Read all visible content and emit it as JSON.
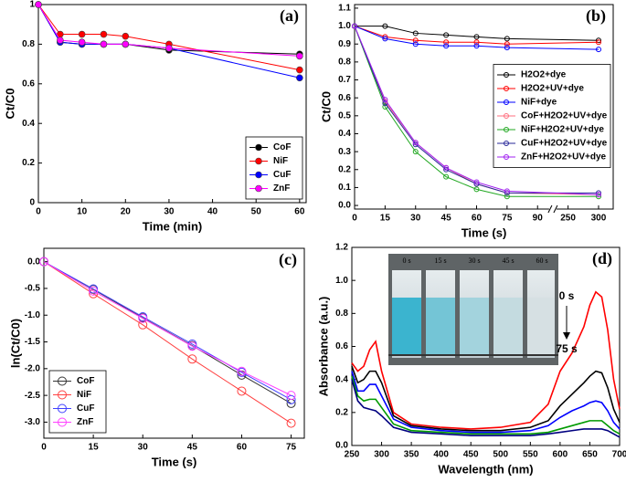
{
  "chart_data": [
    {
      "type": "line",
      "panel_label": "(a)",
      "xlabel": "Time (min)",
      "ylabel": "Ct/C0",
      "x": [
        0,
        5,
        10,
        15,
        20,
        30,
        60
      ],
      "xlim": [
        0,
        61.5
      ],
      "ylim": [
        0,
        1
      ],
      "xticks": [
        0,
        10,
        20,
        30,
        40,
        50,
        60
      ],
      "yticks": [
        0,
        0.2,
        0.4,
        0.6,
        0.8,
        1
      ],
      "markers": "filled",
      "legend": "lower right",
      "series": [
        {
          "name": "CoF",
          "color": "#000000",
          "values": [
            1,
            0.81,
            0.8,
            0.8,
            0.8,
            0.77,
            0.75
          ]
        },
        {
          "name": "NiF",
          "color": "#ff0000",
          "values": [
            1,
            0.85,
            0.85,
            0.85,
            0.84,
            0.8,
            0.67
          ]
        },
        {
          "name": "CuF",
          "color": "#0000ff",
          "values": [
            1,
            0.81,
            0.8,
            0.8,
            0.8,
            0.78,
            0.63
          ]
        },
        {
          "name": "ZnF",
          "color": "#ff00ff",
          "values": [
            1,
            0.82,
            0.81,
            0.8,
            0.8,
            0.78,
            0.74
          ]
        }
      ]
    },
    {
      "type": "line",
      "panel_label": "(b)",
      "xlabel": "Time (s)",
      "ylabel": "Ct/C0",
      "x": [
        0,
        15,
        30,
        45,
        60,
        75,
        300
      ],
      "xlim": [
        0,
        324
      ],
      "ylim": [
        -0.02,
        1.12
      ],
      "axis_break": true,
      "xticks": [
        0,
        15,
        30,
        45,
        60,
        75,
        90,
        250,
        300
      ],
      "yticks": [
        {
          "value": 0,
          "label": "0.0"
        },
        0.1,
        0.2,
        0.3,
        0.4,
        0.5,
        0.6,
        0.7,
        0.8,
        0.9,
        {
          "value": 1,
          "label": "1.0"
        },
        1.1
      ],
      "markers": "open",
      "legend": "center right",
      "series": [
        {
          "name": "H2O2+dye",
          "color": "#000000",
          "values": [
            1,
            1.0,
            0.96,
            0.95,
            0.94,
            0.93,
            0.92
          ]
        },
        {
          "name": "H2O2+UV+dye",
          "color": "#ff0000",
          "values": [
            1,
            0.94,
            0.92,
            0.91,
            0.91,
            0.9,
            0.91
          ]
        },
        {
          "name": "NiF+dye",
          "color": "#0000ff",
          "values": [
            1,
            0.93,
            0.9,
            0.89,
            0.89,
            0.88,
            0.87
          ]
        },
        {
          "name": "CoF+H2O2+UV+dye",
          "color": "#ff6f7f",
          "values": [
            1,
            0.58,
            0.35,
            0.21,
            0.12,
            0.07,
            0.06
          ]
        },
        {
          "name": "NiF+H2O2+UV+dye",
          "color": "#22a822",
          "values": [
            1,
            0.55,
            0.3,
            0.16,
            0.09,
            0.05,
            0.05
          ]
        },
        {
          "name": "CuF+H2O2+UV+dye",
          "color": "#2a2a9a",
          "values": [
            1,
            0.57,
            0.34,
            0.2,
            0.12,
            0.07,
            0.07
          ]
        },
        {
          "name": "ZnF+H2O2+UV+dye",
          "color": "#a020f0",
          "values": [
            1,
            0.59,
            0.35,
            0.21,
            0.13,
            0.08,
            0.06
          ]
        }
      ]
    },
    {
      "type": "line",
      "panel_label": "(c)",
      "xlabel": "Time (s)",
      "ylabel": "ln(Ct/C0)",
      "x": [
        0,
        15,
        30,
        45,
        60,
        75
      ],
      "xlim": [
        0,
        79
      ],
      "ylim": [
        -3.3,
        0.25
      ],
      "xticks": [
        0,
        15,
        30,
        45,
        60,
        75
      ],
      "yticks": [
        {
          "value": 0,
          "label": "0.0"
        },
        -0.5,
        {
          "value": -1,
          "label": "-1.0"
        },
        -1.5,
        {
          "value": -2,
          "label": "-2.0"
        },
        -2.5,
        {
          "value": -3,
          "label": "-3.0"
        }
      ],
      "markers": "open-large",
      "legend": "lower left",
      "series": [
        {
          "name": "CoF",
          "color": "#333333",
          "values": [
            0,
            -0.52,
            -1.05,
            -1.57,
            -2.12,
            -2.65
          ]
        },
        {
          "name": "NiF",
          "color": "#ff4040",
          "values": [
            0,
            -0.6,
            -1.18,
            -1.82,
            -2.42,
            -3.02
          ]
        },
        {
          "name": "CuF",
          "color": "#4040ff",
          "values": [
            0,
            -0.51,
            -1.03,
            -1.54,
            -2.07,
            -2.58
          ]
        },
        {
          "name": "ZnF",
          "color": "#ff40ff",
          "values": [
            0,
            -0.55,
            -1.06,
            -1.58,
            -2.05,
            -2.5
          ]
        }
      ]
    },
    {
      "type": "line",
      "panel_label": "(d)",
      "xlabel": "Wavelength (nm)",
      "ylabel": "Absorbance (a.u.)",
      "x": [
        250,
        260,
        270,
        280,
        290,
        300,
        320,
        350,
        400,
        450,
        500,
        550,
        580,
        600,
        620,
        640,
        650,
        660,
        670,
        680,
        690,
        700
      ],
      "xlim": [
        250,
        700
      ],
      "ylim": [
        0,
        1.2
      ],
      "xticks": [
        250,
        300,
        350,
        400,
        450,
        500,
        550,
        600,
        650,
        700
      ],
      "yticks": [
        {
          "value": 0,
          "label": "0.0"
        },
        0.2,
        0.4,
        0.6,
        0.8,
        {
          "value": 1,
          "label": "1.0"
        },
        1.2
      ],
      "markers": "none",
      "annotations": [
        "0 s",
        "75 s"
      ],
      "inset_labels": [
        "0 s",
        "15 s",
        "30 s",
        "45 s",
        "60 s"
      ],
      "series": [
        {
          "color": "#ff0000",
          "values": [
            0.5,
            0.45,
            0.48,
            0.58,
            0.63,
            0.45,
            0.2,
            0.13,
            0.11,
            0.1,
            0.11,
            0.14,
            0.25,
            0.45,
            0.56,
            0.72,
            0.85,
            0.93,
            0.9,
            0.7,
            0.4,
            0.22
          ]
        },
        {
          "color": "#000000",
          "values": [
            0.48,
            0.38,
            0.4,
            0.45,
            0.45,
            0.38,
            0.18,
            0.12,
            0.1,
            0.09,
            0.09,
            0.11,
            0.15,
            0.24,
            0.31,
            0.38,
            0.42,
            0.45,
            0.44,
            0.35,
            0.22,
            0.14
          ]
        },
        {
          "color": "#0000ff",
          "values": [
            0.45,
            0.33,
            0.33,
            0.37,
            0.37,
            0.3,
            0.16,
            0.11,
            0.09,
            0.08,
            0.08,
            0.09,
            0.12,
            0.17,
            0.21,
            0.24,
            0.26,
            0.27,
            0.26,
            0.21,
            0.14,
            0.1
          ]
        },
        {
          "color": "#009a00",
          "values": [
            0.42,
            0.3,
            0.27,
            0.28,
            0.28,
            0.23,
            0.13,
            0.09,
            0.08,
            0.07,
            0.07,
            0.07,
            0.08,
            0.1,
            0.12,
            0.14,
            0.15,
            0.15,
            0.15,
            0.12,
            0.09,
            0.07
          ]
        },
        {
          "color": "#000080",
          "values": [
            0.4,
            0.27,
            0.23,
            0.22,
            0.21,
            0.18,
            0.11,
            0.08,
            0.07,
            0.06,
            0.06,
            0.06,
            0.07,
            0.08,
            0.09,
            0.1,
            0.1,
            0.1,
            0.1,
            0.09,
            0.07,
            0.05
          ]
        }
      ]
    }
  ]
}
